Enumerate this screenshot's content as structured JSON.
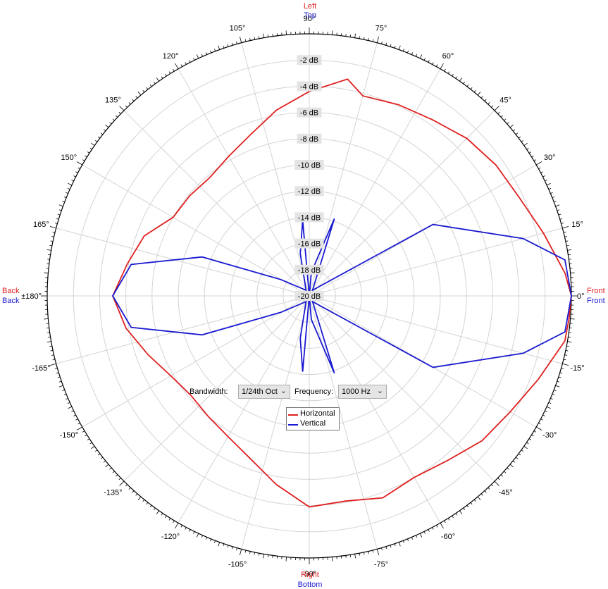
{
  "chart_data": {
    "type": "polar-line",
    "radial_axis": {
      "labels": [
        "-2 dB",
        "-4 dB",
        "-6 dB",
        "-8 dB",
        "-10 dB",
        "-12 dB",
        "-14 dB",
        "-16 dB",
        "-18 dB",
        "-20 dB"
      ],
      "rings_db": [
        -2,
        -4,
        -6,
        -8,
        -10,
        -12,
        -14,
        -16,
        -18,
        -20
      ],
      "range_db": [
        -20,
        0
      ]
    },
    "angular_axis": {
      "labels": [
        {
          "deg": 90,
          "text": "90°"
        },
        {
          "deg": 75,
          "text": "75°"
        },
        {
          "deg": 60,
          "text": "60°"
        },
        {
          "deg": 45,
          "text": "45°"
        },
        {
          "deg": 30,
          "text": "30°"
        },
        {
          "deg": 15,
          "text": "15°"
        },
        {
          "deg": 0,
          "text": "0°"
        },
        {
          "deg": -15,
          "text": "-15°"
        },
        {
          "deg": -30,
          "text": "-30°"
        },
        {
          "deg": -45,
          "text": "-45°"
        },
        {
          "deg": -60,
          "text": "-60°"
        },
        {
          "deg": -75,
          "text": "-75°"
        },
        {
          "deg": -90,
          "text": "-90°"
        },
        {
          "deg": -105,
          "text": "-105°"
        },
        {
          "deg": -120,
          "text": "-120°"
        },
        {
          "deg": -135,
          "text": "-135°"
        },
        {
          "deg": -150,
          "text": "-150°"
        },
        {
          "deg": -165,
          "text": "-165°"
        },
        {
          "deg": 180,
          "text": "±180°"
        },
        {
          "deg": 165,
          "text": "165°"
        },
        {
          "deg": 150,
          "text": "150°"
        },
        {
          "deg": 135,
          "text": "135°"
        },
        {
          "deg": 120,
          "text": "120°"
        },
        {
          "deg": 105,
          "text": "105°"
        }
      ],
      "grid_step_deg": 15
    },
    "direction_labels": {
      "top_red": "Left",
      "top_blue": "Top",
      "bottom_red": "Right",
      "bottom_blue": "Bottom",
      "left_red": "Back",
      "left_blue": "Back",
      "right_red": "Front",
      "right_blue": "Front"
    },
    "series": [
      {
        "name": "Horizontal",
        "color": "#e02020",
        "points": [
          {
            "a": 0,
            "db": 0.0
          },
          {
            "a": 5,
            "db": -0.4
          },
          {
            "a": 15,
            "db": -1.5
          },
          {
            "a": 25,
            "db": -2.3
          },
          {
            "a": 35,
            "db": -2.6
          },
          {
            "a": 45,
            "db": -3.0
          },
          {
            "a": 55,
            "db": -3.6
          },
          {
            "a": 65,
            "db": -3.9
          },
          {
            "a": 75,
            "db": -4.2
          },
          {
            "a": 80,
            "db": -3.2
          },
          {
            "a": 90,
            "db": -4.4
          },
          {
            "a": 100,
            "db": -5.6
          },
          {
            "a": 110,
            "db": -6.9
          },
          {
            "a": 120,
            "db": -7.7
          },
          {
            "a": 130,
            "db": -8.2
          },
          {
            "a": 140,
            "db": -8.1
          },
          {
            "a": 150,
            "db": -8.0
          },
          {
            "a": 160,
            "db": -6.6
          },
          {
            "a": 170,
            "db": -5.9
          },
          {
            "a": 180,
            "db": -5.0
          },
          {
            "a": 190,
            "db": -5.8
          },
          {
            "a": 200,
            "db": -6.9
          },
          {
            "a": 210,
            "db": -7.8
          },
          {
            "a": 220,
            "db": -8.2
          },
          {
            "a": 230,
            "db": -8.0
          },
          {
            "a": 240,
            "db": -7.6
          },
          {
            "a": 250,
            "db": -6.8
          },
          {
            "a": 260,
            "db": -5.4
          },
          {
            "a": 270,
            "db": -3.9
          },
          {
            "a": 280,
            "db": -4.1
          },
          {
            "a": 290,
            "db": -3.6
          },
          {
            "a": 300,
            "db": -4.0
          },
          {
            "a": 310,
            "db": -3.6
          },
          {
            "a": 320,
            "db": -2.8
          },
          {
            "a": 330,
            "db": -2.3
          },
          {
            "a": 340,
            "db": -1.4
          },
          {
            "a": 350,
            "db": -0.2
          },
          {
            "a": 355,
            "db": -0.1
          },
          {
            "a": 360,
            "db": 0.0
          }
        ]
      },
      {
        "name": "Vertical",
        "color": "#1a1ad0",
        "points": [
          {
            "a": 0,
            "db": 0.0
          },
          {
            "a": 8,
            "db": -0.3
          },
          {
            "a": 15,
            "db": -3.1
          },
          {
            "a": 30,
            "db": -9.1
          },
          {
            "a": 60,
            "db": -19.5
          },
          {
            "a": 72,
            "db": -13.8
          },
          {
            "a": 85,
            "db": -18.2
          },
          {
            "a": 88,
            "db": -20
          },
          {
            "a": 95,
            "db": -14.2
          },
          {
            "a": 102,
            "db": -16.7
          },
          {
            "a": 120,
            "db": -19.5
          },
          {
            "a": 150,
            "db": -17.5
          },
          {
            "a": 160,
            "db": -11.3
          },
          {
            "a": 170,
            "db": -6.2
          },
          {
            "a": 180,
            "db": -5.0
          },
          {
            "a": 190,
            "db": -6.2
          },
          {
            "a": 200,
            "db": -11.3
          },
          {
            "a": 210,
            "db": -17.5
          },
          {
            "a": 240,
            "db": -19.5
          },
          {
            "a": 258,
            "db": -16.7
          },
          {
            "a": 265,
            "db": -14.2
          },
          {
            "a": 272,
            "db": -20
          },
          {
            "a": 275,
            "db": -18.2
          },
          {
            "a": 288,
            "db": -13.8
          },
          {
            "a": 300,
            "db": -19.5
          },
          {
            "a": 330,
            "db": -9.1
          },
          {
            "a": 345,
            "db": -3.1
          },
          {
            "a": 352,
            "db": -0.3
          },
          {
            "a": 360,
            "db": 0.0
          }
        ]
      }
    ],
    "legend": {
      "placement": "bottom-center",
      "entries": [
        "Horizontal",
        "Vertical"
      ]
    }
  },
  "controls": {
    "bandwidth_label": "Bandwidth:",
    "bandwidth_value": "1/24th Oct",
    "frequency_label": "Frequency:",
    "frequency_value": "1000 Hz",
    "chevron_icon": "chevron-down-icon"
  },
  "colors": {
    "grid": "#d4d4d4",
    "axis": "#000000",
    "red_label": "#e02020",
    "blue_label": "#1a1ad0",
    "db_label_bg": "#e3e3e3"
  }
}
